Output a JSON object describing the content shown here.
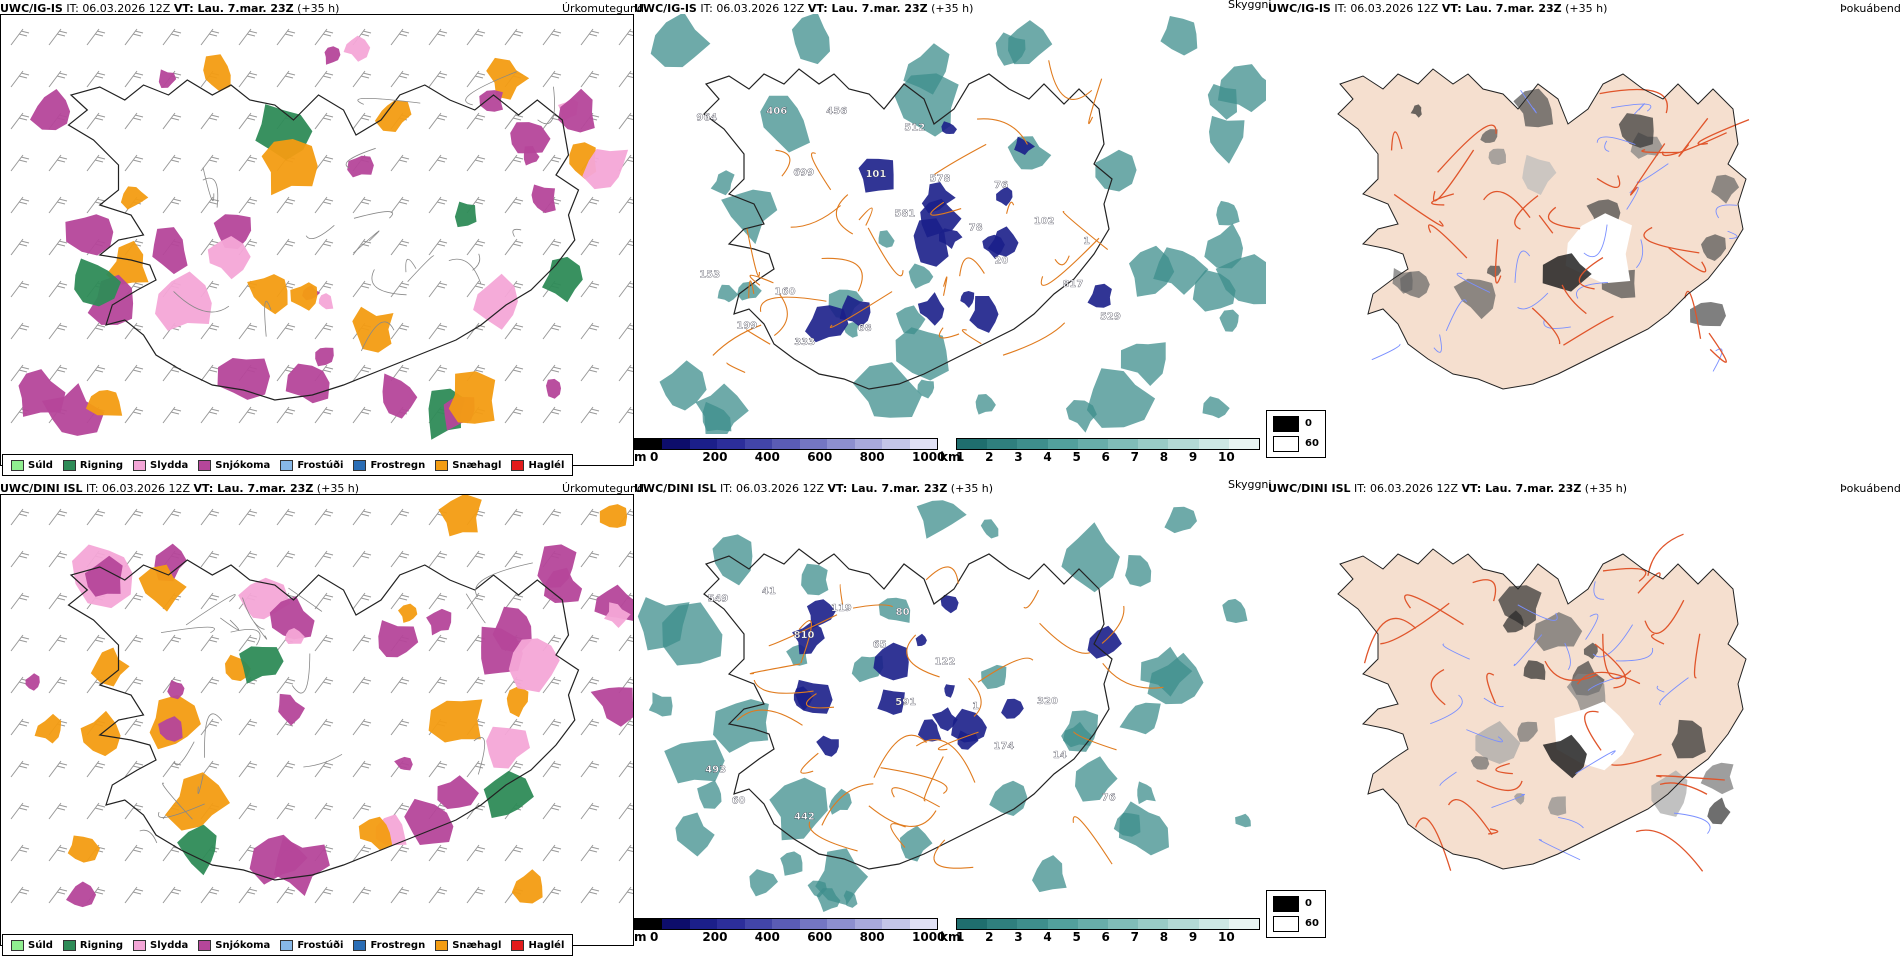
{
  "rows": [
    {
      "model": "UWC/IG-IS",
      "info": " IT: 06.03.2026 12Z ",
      "vt_label": "VT:",
      "vt_value": " Lau. 7.mar. 23Z",
      "lead": " (+35 h)"
    },
    {
      "model": "UWC/DINI ISL",
      "info": " IT: 06.03.2026 12Z ",
      "vt_label": "VT:",
      "vt_value": " Lau. 7.mar. 23Z",
      "lead": " (+35 h)"
    }
  ],
  "panel_titles": {
    "precip_type": "Úrkomutegund",
    "cloud_base": "Skyggni",
    "fog": "Þokuábendi"
  },
  "precip_legend": [
    {
      "label": "Súld",
      "color": "#90ee90"
    },
    {
      "label": "Rigning",
      "color": "#2e8b57"
    },
    {
      "label": "Slydda",
      "color": "#f4a6d7"
    },
    {
      "label": "Snjókoma",
      "color": "#b5469a"
    },
    {
      "label": "Frostúði",
      "color": "#87b8e8"
    },
    {
      "label": "Frostregn",
      "color": "#2a6db5"
    },
    {
      "label": "Snæhagl",
      "color": "#f39c12"
    },
    {
      "label": "Haglél",
      "color": "#e11b1b"
    }
  ],
  "ceiling_scale": {
    "unit": "m",
    "ticks": [
      "0",
      "200",
      "400",
      "600",
      "800",
      "1000"
    ],
    "colors": [
      "#000000",
      "#0d0d6b",
      "#1b1f8a",
      "#2c2e9a",
      "#4245a8",
      "#5a5cb5",
      "#7476c2",
      "#8d8fcf",
      "#a8a9dc",
      "#c4c5e8",
      "#e0e0f4"
    ]
  },
  "visibility_scale": {
    "unit": "km",
    "ticks": [
      "1",
      "2",
      "3",
      "4",
      "5",
      "6",
      "7",
      "8",
      "9",
      "10"
    ],
    "colors": [
      "#1f6e6e",
      "#2f7f7e",
      "#3e8e8c",
      "#52a09c",
      "#68aeaa",
      "#80bdb8",
      "#99cbc6",
      "#b3d9d5",
      "#cde7e4",
      "#e8f4f2"
    ]
  },
  "fog_legend": [
    {
      "label": "0",
      "color": "#000000"
    },
    {
      "label": "60",
      "color": "#ffffff"
    }
  ],
  "cloud_labels_top": [
    "964",
    "699",
    "581",
    "20",
    "529",
    "406",
    "101",
    "78",
    "817",
    "199",
    "456",
    "578",
    "102",
    "153",
    "333",
    "512",
    "76",
    "1",
    "160",
    "68"
  ],
  "cloud_labels_bottom": [
    "549",
    "810",
    "591",
    "174",
    "76",
    "41",
    "65",
    "1",
    "14",
    "60",
    "119",
    "122",
    "320",
    "493",
    "442",
    "80"
  ]
}
